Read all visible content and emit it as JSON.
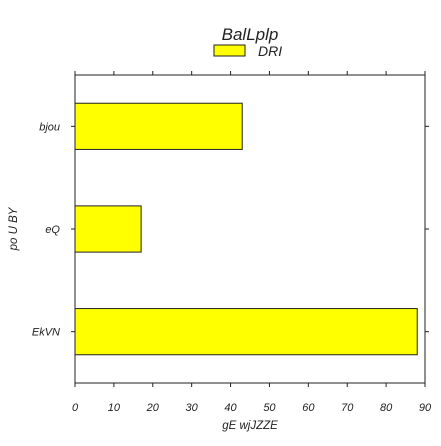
{
  "chart_data": {
    "type": "bar",
    "orientation": "horizontal",
    "title": "BalLplp",
    "xlabel": "gE wjJZZE",
    "ylabel": "po U BY",
    "categories": [
      "bjou",
      "eQ",
      "EkVN"
    ],
    "series": [
      {
        "name": "DRI",
        "values": [
          43,
          17,
          88
        ],
        "color": "#ffff00"
      }
    ],
    "xlim": [
      0,
      90
    ],
    "xticks": [
      0,
      10,
      20,
      30,
      40,
      50,
      60,
      70,
      80,
      90
    ],
    "grid": false,
    "legend_position": "top-center"
  }
}
